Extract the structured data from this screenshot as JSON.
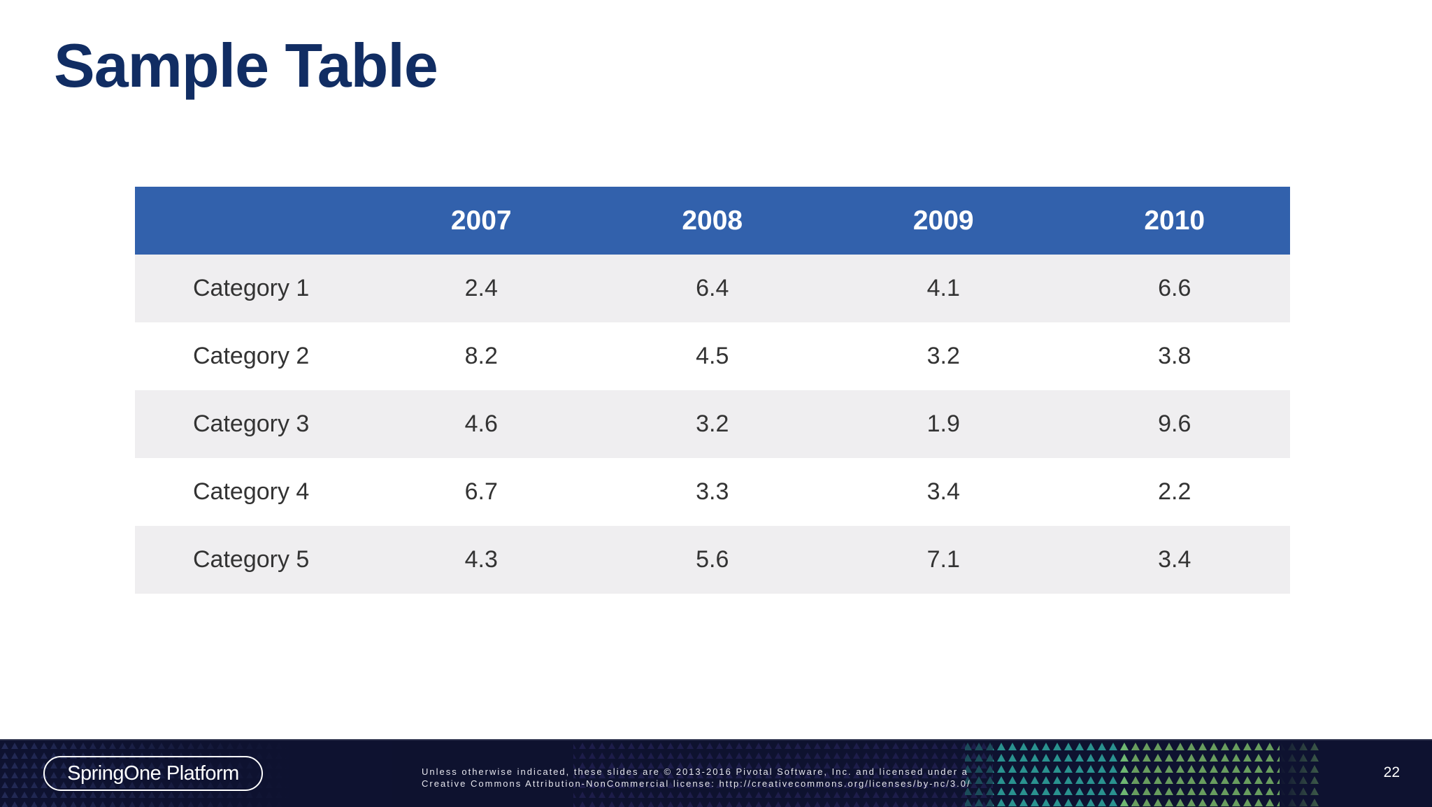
{
  "slide": {
    "title": "Sample Table",
    "page_number": "22"
  },
  "table": {
    "headers": [
      "",
      "2007",
      "2008",
      "2009",
      "2010"
    ],
    "rows": [
      {
        "label": "Category 1",
        "values": [
          "2.4",
          "6.4",
          "4.1",
          "6.6"
        ]
      },
      {
        "label": "Category 2",
        "values": [
          "8.2",
          "4.5",
          "3.2",
          "3.8"
        ]
      },
      {
        "label": "Category 3",
        "values": [
          "4.6",
          "3.2",
          "1.9",
          "9.6"
        ]
      },
      {
        "label": "Category 4",
        "values": [
          "6.7",
          "3.3",
          "3.4",
          "2.2"
        ]
      },
      {
        "label": "Category 5",
        "values": [
          "4.3",
          "5.6",
          "7.1",
          "3.4"
        ]
      }
    ]
  },
  "footer": {
    "logo_text": "SpringOne Platform",
    "license_line1": "Unless otherwise indicated, these slides are © 2013-2016 Pivotal Software, Inc. and licensed under a",
    "license_line2": "Creative Commons Attribution-NonCommercial license: http://creativecommons.org/licenses/by-nc/3.0/"
  },
  "colors": {
    "title": "#112d63",
    "header_bg": "#3261ac",
    "row_stripe": "#efeef0",
    "footer_bg": "#0e1230"
  }
}
